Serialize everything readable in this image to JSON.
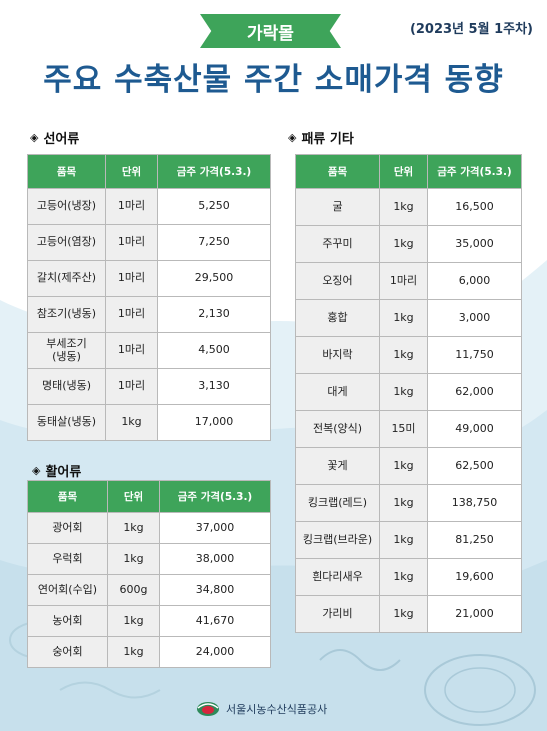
{
  "header": {
    "badge": "가락몰",
    "date": "(2023년 5월 1주차)",
    "title": "주요 수축산물  주간 소매가격 동향"
  },
  "sections": {
    "fresh": {
      "title": "선어류",
      "headers": [
        "품목",
        "단위",
        "금주 가격(5.3.)"
      ],
      "rows": [
        [
          "고등어(냉장)",
          "1마리",
          "5,250"
        ],
        [
          "고등어(염장)",
          "1마리",
          "7,250"
        ],
        [
          "갈치(제주산)",
          "1마리",
          "29,500"
        ],
        [
          "참조기(냉동)",
          "1마리",
          "2,130"
        ],
        [
          "부세조기\n(냉동)",
          "1마리",
          "4,500"
        ],
        [
          "명태(냉동)",
          "1마리",
          "3,130"
        ],
        [
          "동태살(냉동)",
          "1kg",
          "17,000"
        ]
      ]
    },
    "live": {
      "title": "활어류",
      "headers": [
        "품목",
        "단위",
        "금주 가격(5.3.)"
      ],
      "rows": [
        [
          "광어회",
          "1kg",
          "37,000"
        ],
        [
          "우럭회",
          "1kg",
          "38,000"
        ],
        [
          "연어회(수입)",
          "600g",
          "34,800"
        ],
        [
          "농어회",
          "1kg",
          "41,670"
        ],
        [
          "숭어회",
          "1kg",
          "24,000"
        ]
      ]
    },
    "shell": {
      "title": "패류 기타",
      "headers": [
        "품목",
        "단위",
        "금주 가격(5.3.)"
      ],
      "rows": [
        [
          "굴",
          "1kg",
          "16,500"
        ],
        [
          "주꾸미",
          "1kg",
          "35,000"
        ],
        [
          "오징어",
          "1마리",
          "6,000"
        ],
        [
          "홍합",
          "1kg",
          "3,000"
        ],
        [
          "바지락",
          "1kg",
          "11,750"
        ],
        [
          "대게",
          "1kg",
          "62,000"
        ],
        [
          "전복(양식)",
          "15미",
          "49,000"
        ],
        [
          "꽃게",
          "1kg",
          "62,500"
        ],
        [
          "킹크랩(레드)",
          "1kg",
          "138,750"
        ],
        [
          "킹크랩(브라운)",
          "1kg",
          "81,250"
        ],
        [
          "흰다리새우",
          "1kg",
          "19,600"
        ],
        [
          "가리비",
          "1kg",
          "21,000"
        ]
      ]
    }
  },
  "footer": {
    "org": "서울시농수산식품공사"
  },
  "colors": {
    "accent_green": "#3ea45a",
    "title_blue": "#1e5a91",
    "wave": "#d4e8f2"
  }
}
